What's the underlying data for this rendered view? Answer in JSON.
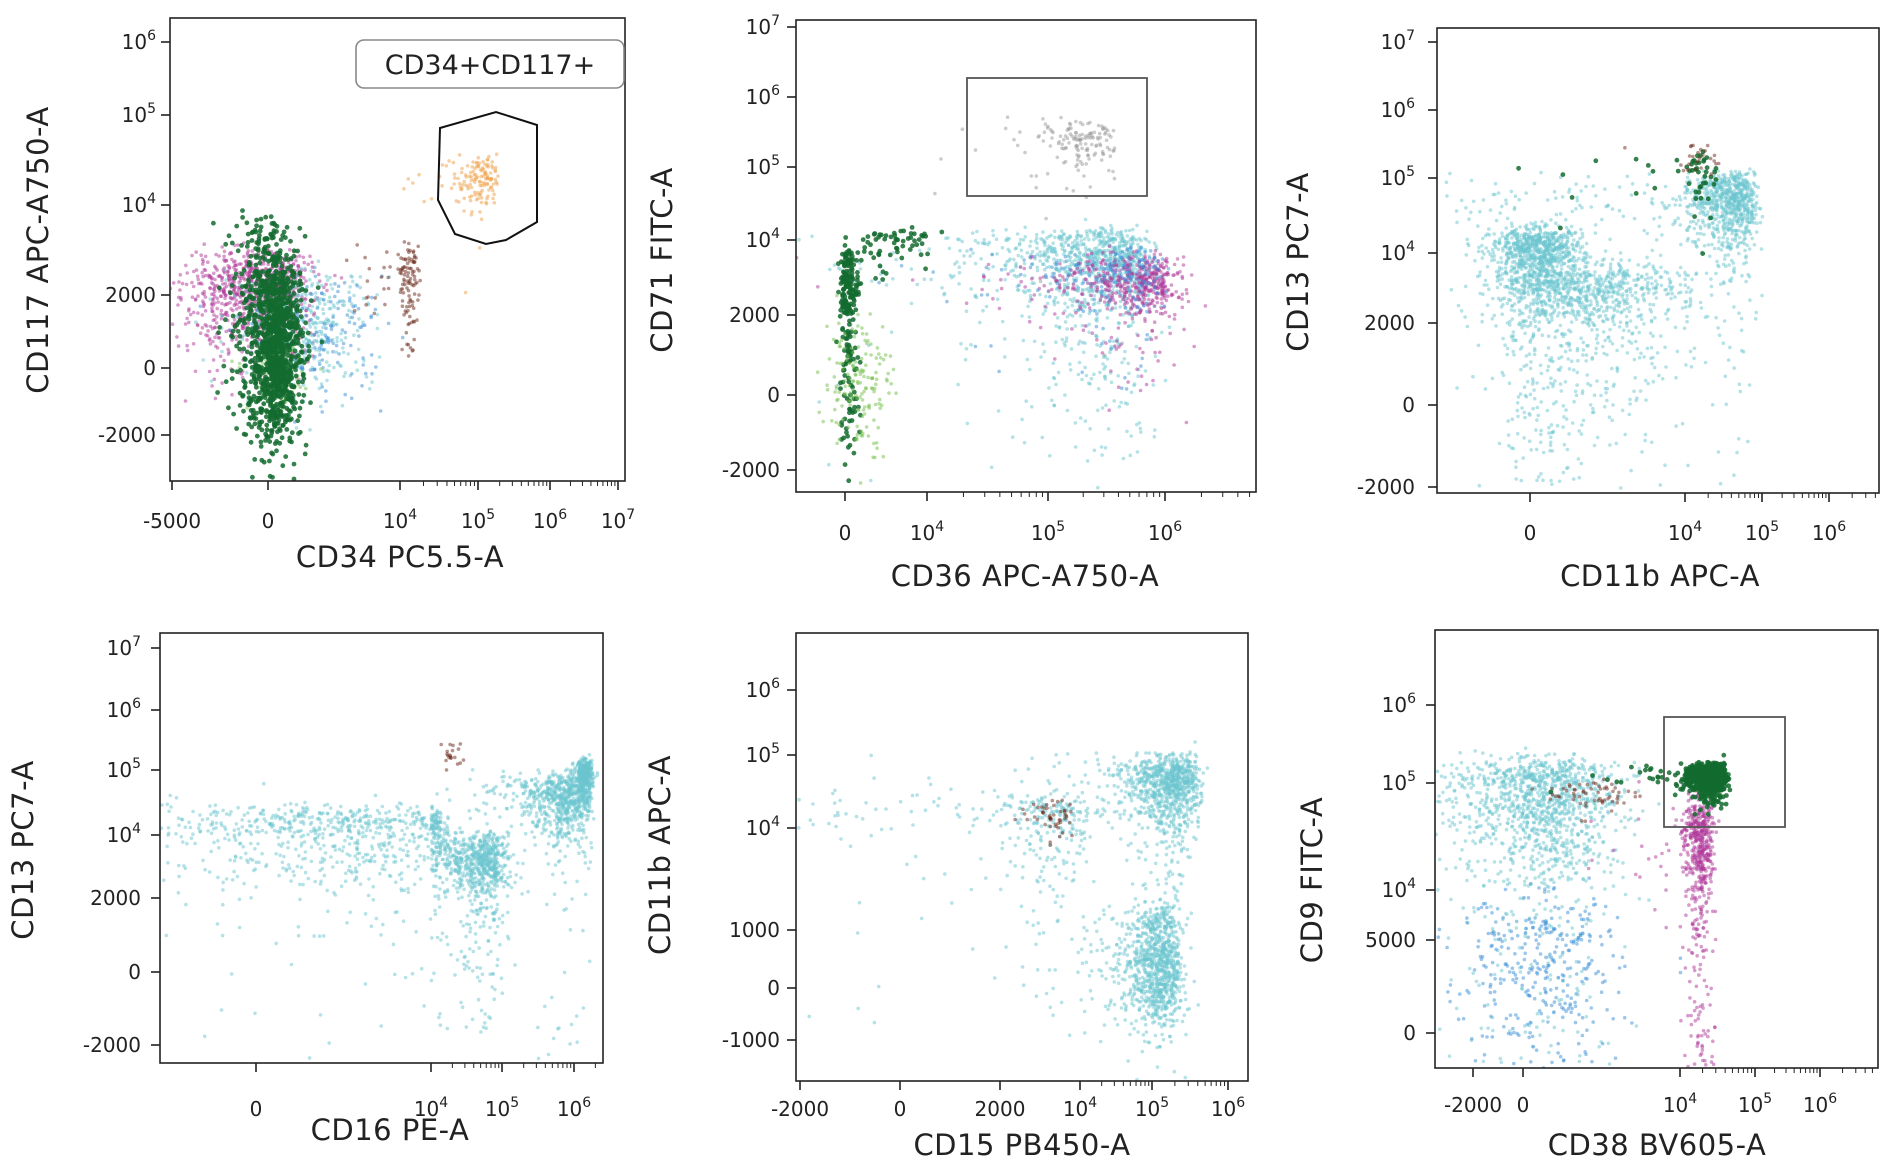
{
  "figure": {
    "description_colors": {
      "cyan": "#6cc6cf",
      "magenta": "#b0389a",
      "dark_green": "#136b2f",
      "light_green": "#74c04a",
      "blue": "#3a8fd8",
      "orange": "#eea24a",
      "brown": "#6b2a1c",
      "gray": "#9a9a9a"
    }
  },
  "chart_data": [
    {
      "type": "scatter",
      "panel": "top-left",
      "title": "",
      "xlabel": "CD34 PC5.5-A",
      "ylabel": "CD117 APC-A750-A",
      "x_ticks": [
        {
          "label": "-5000",
          "v": -5000
        },
        {
          "label": "0",
          "v": 0
        },
        {
          "label": "10^4",
          "v": 10000
        },
        {
          "label": "10^5",
          "v": 100000
        },
        {
          "label": "10^6",
          "v": 1000000
        },
        {
          "label": "10^7",
          "v": 10000000
        }
      ],
      "y_ticks": [
        {
          "label": "-2000",
          "v": -2000
        },
        {
          "label": "0",
          "v": 0
        },
        {
          "label": "2000",
          "v": 2000
        },
        {
          "label": "10^4",
          "v": 10000
        },
        {
          "label": "10^5",
          "v": 100000
        },
        {
          "label": "10^6",
          "v": 1000000
        }
      ],
      "gate": {
        "label": "CD34+CD117+",
        "shape": "polygon"
      },
      "populations": [
        {
          "color": "magenta",
          "cx": -500,
          "cy": 2100,
          "sx": 1900,
          "sy": 1000,
          "n": 900
        },
        {
          "color": "cyan",
          "cx": 3000,
          "cy": 1200,
          "sx": 2500,
          "sy": 900,
          "n": 350
        },
        {
          "color": "blue",
          "cx": 4000,
          "cy": 900,
          "sx": 2500,
          "sy": 900,
          "n": 150
        },
        {
          "color": "light_green",
          "cx": 800,
          "cy": -200,
          "sx": 900,
          "sy": 500,
          "n": 120
        },
        {
          "color": "dark_green",
          "cx": 500,
          "cy": 600,
          "sx": 1000,
          "sy": 1400,
          "n": 1200
        },
        {
          "color": "dark_green",
          "cx": -200,
          "cy": 5200,
          "sx": 1100,
          "sy": 1500,
          "n": 80
        },
        {
          "color": "brown",
          "cx": 12000,
          "cy": 2600,
          "sx": 2500,
          "sy": 1000,
          "n": 120
        },
        {
          "color": "orange",
          "cx": 105000,
          "cy": 20000,
          "sx": 40000,
          "sy": 7000,
          "n": 140
        }
      ]
    },
    {
      "type": "scatter",
      "panel": "top-middle",
      "title": "",
      "xlabel": "CD36 APC-A750-A",
      "ylabel": "CD71 FITC-A",
      "x_ticks": [
        {
          "label": "0",
          "v": 0
        },
        {
          "label": "10^4",
          "v": 10000
        },
        {
          "label": "10^5",
          "v": 100000
        },
        {
          "label": "10^6",
          "v": 1000000
        }
      ],
      "y_ticks": [
        {
          "label": "-2000",
          "v": -2000
        },
        {
          "label": "0",
          "v": 0
        },
        {
          "label": "2000",
          "v": 2000
        },
        {
          "label": "10^4",
          "v": 10000
        },
        {
          "label": "10^5",
          "v": 100000
        },
        {
          "label": "10^6",
          "v": 1000000
        },
        {
          "label": "10^7",
          "v": 10000000
        }
      ],
      "gate": {
        "label": "",
        "shape": "rectangle"
      },
      "populations": [
        {
          "color": "cyan",
          "cx": 100000,
          "cy": 5500,
          "sx": 300000,
          "sy": 3800,
          "n": 1700
        },
        {
          "color": "magenta",
          "cx": 500000,
          "cy": 3800,
          "sx": 400000,
          "sy": 1500,
          "n": 600
        },
        {
          "color": "blue",
          "cx": 300000,
          "cy": 4500,
          "sx": 300000,
          "sy": 1800,
          "n": 220
        },
        {
          "color": "dark_green",
          "cx": 500,
          "cy": 3000,
          "sx": 600,
          "sy": 2500,
          "n": 240
        },
        {
          "color": "light_green",
          "cx": 1500,
          "cy": 300,
          "sx": 2000,
          "sy": 900,
          "n": 160
        },
        {
          "color": "dark_green",
          "cx": 6000,
          "cy": 9500,
          "sx": 3000,
          "sy": 2500,
          "n": 60
        },
        {
          "color": "gray",
          "cx": 180000,
          "cy": 200000,
          "sx": 90000,
          "sy": 110000,
          "n": 160
        }
      ]
    },
    {
      "type": "scatter",
      "panel": "top-right",
      "title": "",
      "xlabel": "CD11b APC-A",
      "ylabel": "CD13 PC7-A",
      "x_ticks": [
        {
          "label": "0",
          "v": 0
        },
        {
          "label": "10^4",
          "v": 10000
        },
        {
          "label": "10^5",
          "v": 100000
        },
        {
          "label": "10^6",
          "v": 1000000
        }
      ],
      "y_ticks": [
        {
          "label": "-2000",
          "v": -2000
        },
        {
          "label": "0",
          "v": 0
        },
        {
          "label": "2000",
          "v": 2000
        },
        {
          "label": "10^4",
          "v": 10000
        },
        {
          "label": "10^5",
          "v": 100000
        },
        {
          "label": "10^6",
          "v": 1000000
        },
        {
          "label": "10^7",
          "v": 10000000
        }
      ],
      "gate": null,
      "populations": [
        {
          "color": "cyan",
          "cx": 500,
          "cy": 8000,
          "sx": 1500,
          "sy": 6000,
          "n": 1100
        },
        {
          "color": "cyan",
          "cx": 4000,
          "cy": 3500,
          "sx": 3000,
          "sy": 2200,
          "n": 800
        },
        {
          "color": "cyan",
          "cx": 30000,
          "cy": 40000,
          "sx": 25000,
          "sy": 35000,
          "n": 1100
        },
        {
          "color": "dark_green",
          "cx": 14000,
          "cy": 120000,
          "sx": 6000,
          "sy": 60000,
          "n": 50
        },
        {
          "color": "brown",
          "cx": 15000,
          "cy": 200000,
          "sx": 5000,
          "sy": 60000,
          "n": 25
        }
      ]
    },
    {
      "type": "scatter",
      "panel": "bottom-left",
      "title": "",
      "xlabel": "CD16 PE-A",
      "ylabel": "CD13 PC7-A",
      "x_ticks": [
        {
          "label": "0",
          "v": 0
        },
        {
          "label": "10^4",
          "v": 10000
        },
        {
          "label": "10^5",
          "v": 100000
        },
        {
          "label": "10^6",
          "v": 1000000
        }
      ],
      "y_ticks": [
        {
          "label": "-2000",
          "v": -2000
        },
        {
          "label": "0",
          "v": 0
        },
        {
          "label": "2000",
          "v": 2000
        },
        {
          "label": "10^4",
          "v": 10000
        },
        {
          "label": "10^5",
          "v": 100000
        },
        {
          "label": "10^6",
          "v": 1000000
        },
        {
          "label": "10^7",
          "v": 10000000
        }
      ],
      "gate": null,
      "populations": [
        {
          "color": "cyan",
          "cx": 5000,
          "cy": 12000,
          "sx": 5000,
          "sy": 8000,
          "n": 700
        },
        {
          "color": "cyan",
          "cx": 40000,
          "cy": 4500,
          "sx": 35000,
          "sy": 2500,
          "n": 900
        },
        {
          "color": "cyan",
          "cx": 600000,
          "cy": 30000,
          "sx": 500000,
          "sy": 25000,
          "n": 900
        },
        {
          "color": "cyan",
          "cx": 1400000,
          "cy": 80000,
          "sx": 200000,
          "sy": 30000,
          "n": 400
        },
        {
          "color": "brown",
          "cx": 20000,
          "cy": 180000,
          "sx": 4000,
          "sy": 60000,
          "n": 20
        }
      ]
    },
    {
      "type": "scatter",
      "panel": "bottom-middle",
      "title": "",
      "xlabel": "CD15 PB450-A",
      "ylabel": "CD11b APC-A",
      "x_ticks": [
        {
          "label": "-2000",
          "v": -2000
        },
        {
          "label": "0",
          "v": 0
        },
        {
          "label": "2000",
          "v": 2000
        },
        {
          "label": "10^4",
          "v": 10000
        },
        {
          "label": "10^5",
          "v": 100000
        },
        {
          "label": "10^6",
          "v": 1000000
        }
      ],
      "y_ticks": [
        {
          "label": "-1000",
          "v": -1000
        },
        {
          "label": "0",
          "v": 0
        },
        {
          "label": "1000",
          "v": 1000
        },
        {
          "label": "10^4",
          "v": 10000
        },
        {
          "label": "10^5",
          "v": 100000
        },
        {
          "label": "10^6",
          "v": 1000000
        }
      ],
      "gate": null,
      "populations": [
        {
          "color": "cyan",
          "cx": 140000,
          "cy": 30000,
          "sx": 120000,
          "sy": 30000,
          "n": 1300
        },
        {
          "color": "cyan",
          "cx": 110000,
          "cy": 400,
          "sx": 60000,
          "sy": 600,
          "n": 1000
        },
        {
          "color": "cyan",
          "cx": 4000,
          "cy": 12000,
          "sx": 3500,
          "sy": 9000,
          "n": 300
        },
        {
          "color": "brown",
          "cx": 6000,
          "cy": 15000,
          "sx": 1500,
          "sy": 4000,
          "n": 50
        }
      ]
    },
    {
      "type": "scatter",
      "panel": "bottom-right",
      "title": "",
      "xlabel": "CD38 BV605-A",
      "ylabel": "CD9 FITC-A",
      "x_ticks": [
        {
          "label": "-2000",
          "v": -2000
        },
        {
          "label": "0",
          "v": 0
        },
        {
          "label": "10^4",
          "v": 10000
        },
        {
          "label": "10^5",
          "v": 100000
        },
        {
          "label": "10^6",
          "v": 1000000
        }
      ],
      "y_ticks": [
        {
          "label": "0",
          "v": 0
        },
        {
          "label": "5000",
          "v": 5000
        },
        {
          "label": "10^4",
          "v": 10000
        },
        {
          "label": "10^5",
          "v": 100000
        },
        {
          "label": "10^6",
          "v": 1000000
        }
      ],
      "gate": {
        "label": "",
        "shape": "rectangle"
      },
      "populations": [
        {
          "color": "cyan",
          "cx": 1200,
          "cy": 15000,
          "sx": 2500,
          "sy": 80000,
          "n": 2200
        },
        {
          "color": "blue",
          "cx": 1200,
          "cy": 3000,
          "sx": 2500,
          "sy": 3000,
          "n": 350
        },
        {
          "color": "magenta",
          "cx": 18000,
          "cy": 8000,
          "sx": 4500,
          "sy": 30000,
          "n": 900
        },
        {
          "color": "dark_green",
          "cx": 25000,
          "cy": 120000,
          "sx": 7000,
          "sy": 25000,
          "n": 1000
        },
        {
          "color": "brown",
          "cx": 4500,
          "cy": 80000,
          "sx": 1500,
          "sy": 15000,
          "n": 60
        }
      ]
    }
  ]
}
